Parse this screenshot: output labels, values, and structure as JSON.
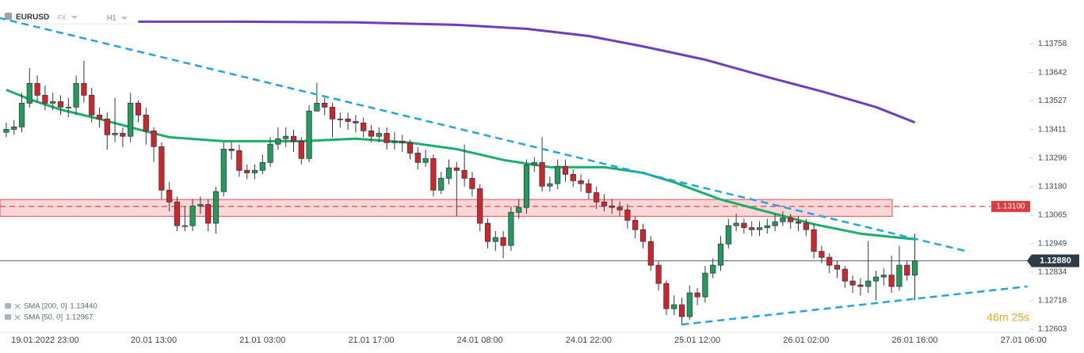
{
  "chart_data": {
    "type": "candlestick",
    "symbol": "EURUSD",
    "market": "FX",
    "interval": "H1",
    "countdown": "46m 25s",
    "categories": [
      null,
      null,
      null,
      null,
      null,
      "19.01.2022 23:00",
      null,
      null,
      null,
      null,
      null,
      null,
      null,
      null,
      null,
      null,
      null,
      null,
      null,
      "20.01 13:00",
      null,
      null,
      null,
      null,
      null,
      null,
      null,
      null,
      null,
      null,
      null,
      null,
      null,
      "21.01 03:00",
      null,
      null,
      null,
      null,
      null,
      null,
      null,
      null,
      null,
      null,
      null,
      null,
      null,
      "21.01 17:00",
      null,
      null,
      null,
      null,
      null,
      null,
      null,
      null,
      null,
      null,
      null,
      null,
      null,
      "24.01 08:00",
      null,
      null,
      null,
      null,
      null,
      null,
      null,
      null,
      null,
      null,
      null,
      null,
      null,
      "24.01 22:00",
      null,
      null,
      null,
      null,
      null,
      null,
      null,
      null,
      null,
      null,
      null,
      null,
      null,
      "25.01 12:00",
      null,
      null,
      null,
      null,
      null,
      null,
      null,
      null,
      null,
      null,
      null,
      null,
      null,
      "26.01 02:00",
      null,
      null,
      null,
      null,
      null,
      null,
      null,
      null,
      null,
      null,
      null,
      null,
      null,
      "26.01 16:00",
      null,
      null,
      null,
      null,
      null,
      null,
      null,
      null,
      null,
      null,
      null,
      null,
      null,
      "27.01 06:00"
    ],
    "series": [
      {
        "name": "EURUSD",
        "up_color": "#1f9e5b",
        "down_color": "#d8222a",
        "open": [
          1.134,
          1.13412,
          1.13422,
          1.13518,
          1.13598,
          1.1355,
          1.13518,
          1.13524,
          1.13502,
          1.13502,
          1.13598,
          1.1355,
          1.1347,
          1.13454,
          1.1339,
          1.13396,
          1.13384,
          1.13518,
          1.1347,
          1.13406,
          1.13342,
          1.13166,
          1.13118,
          1.13022,
          1.13022,
          1.13102,
          1.13108,
          1.13032,
          1.1316,
          1.13332,
          1.13326,
          1.13246,
          1.13236,
          1.13246,
          1.13278,
          1.13352,
          1.13374,
          1.13384,
          1.13364,
          1.13294,
          1.13486,
          1.13518,
          1.13502,
          1.13454,
          1.13454,
          1.13444,
          1.13438,
          1.13406,
          1.13384,
          1.13396,
          1.13358,
          1.13364,
          1.13358,
          1.13316,
          1.13278,
          1.13294,
          1.13166,
          1.13214,
          1.13256,
          1.13246,
          1.13214,
          1.13172,
          1.13032,
          1.12958,
          1.12974,
          1.12942,
          1.13076,
          1.13096,
          1.13268,
          1.13278,
          1.13182,
          1.13192,
          1.13262,
          1.1323,
          1.13204,
          1.13192,
          1.13156,
          1.13118,
          1.13102,
          1.13096,
          1.13086,
          1.13044,
          1.13006,
          1.12958,
          1.12862,
          1.12788,
          1.12686,
          1.12702,
          1.12654,
          1.1275,
          1.12734,
          1.1283,
          1.12862,
          1.12948,
          1.13022,
          1.13032,
          1.13014,
          1.13006,
          1.13014,
          1.13022,
          1.13038,
          1.13054,
          1.13038,
          1.13032,
          1.13006,
          1.12918,
          1.12894,
          1.12862,
          1.12846,
          1.12798,
          1.12782,
          1.12776,
          1.12798,
          1.12814,
          1.12822,
          1.12776,
          1.12862,
          1.12822,
          null,
          null,
          null,
          null,
          null,
          null,
          null,
          null,
          null,
          null,
          null,
          null,
          null,
          null
        ],
        "high": [
          1.1344,
          1.1345,
          1.1356,
          1.1366,
          1.1363,
          1.1359,
          1.1356,
          1.1355,
          1.1354,
          1.1363,
          1.1369,
          1.1358,
          1.135,
          1.1348,
          1.1354,
          1.1342,
          1.1356,
          1.1353,
          1.135,
          1.1342,
          1.1336,
          1.132,
          1.1314,
          1.131,
          1.1313,
          1.1314,
          1.1313,
          1.1318,
          1.1336,
          1.1336,
          1.1335,
          1.1327,
          1.1327,
          1.1331,
          1.1338,
          1.1342,
          1.1342,
          1.1341,
          1.1338,
          1.1351,
          1.136,
          1.1354,
          1.1352,
          1.1348,
          1.1348,
          1.1347,
          1.1346,
          1.1343,
          1.1342,
          1.1342,
          1.134,
          1.1339,
          1.1337,
          1.1334,
          1.1333,
          1.1331,
          1.1324,
          1.1329,
          1.1328,
          1.1335,
          1.1324,
          1.1319,
          1.1305,
          1.13,
          1.13,
          1.131,
          1.1313,
          1.1329,
          1.133,
          1.1338,
          1.1322,
          1.1329,
          1.1329,
          1.1325,
          1.1323,
          1.1321,
          1.1318,
          1.1315,
          1.1313,
          1.1312,
          1.1311,
          1.1306,
          1.1303,
          1.1298,
          1.1288,
          1.128,
          1.1274,
          1.1273,
          1.1278,
          1.1277,
          1.1286,
          1.1289,
          1.1298,
          1.1305,
          1.1307,
          1.1305,
          1.1304,
          1.1304,
          1.1305,
          1.1307,
          1.1308,
          1.1307,
          1.1306,
          1.1305,
          1.1303,
          1.1294,
          1.1291,
          1.1288,
          1.1286,
          1.1282,
          1.1281,
          1.1296,
          1.1284,
          1.1285,
          1.129,
          1.1294,
          1.1288,
          1.1299,
          null,
          null,
          null,
          null,
          null,
          null,
          null,
          null,
          null,
          null,
          null,
          null,
          null,
          null
        ],
        "low": [
          1.1338,
          1.1339,
          1.134,
          1.135,
          1.1352,
          1.1349,
          1.1349,
          1.1347,
          1.1346,
          1.1347,
          1.1352,
          1.1344,
          1.1342,
          1.1333,
          1.1336,
          1.1334,
          1.1336,
          1.1344,
          1.1335,
          1.1328,
          1.1313,
          1.1308,
          1.13,
          1.13,
          1.13,
          1.1307,
          1.13,
          1.1299,
          1.1314,
          1.1329,
          1.1322,
          1.1321,
          1.1321,
          1.1323,
          1.1326,
          1.1333,
          1.1334,
          1.1332,
          1.1327,
          1.1328,
          1.1349,
          1.1347,
          1.1338,
          1.1342,
          1.1341,
          1.134,
          1.1338,
          1.1336,
          1.1336,
          1.1333,
          1.1333,
          1.1332,
          1.1329,
          1.1325,
          1.1326,
          1.1314,
          1.1315,
          1.1319,
          1.1306,
          1.1318,
          1.1314,
          1.13,
          1.1293,
          1.1292,
          1.1289,
          1.1292,
          1.1305,
          1.1307,
          1.1324,
          1.1316,
          1.1316,
          1.1317,
          1.132,
          1.1318,
          1.1316,
          1.1313,
          1.1309,
          1.1308,
          1.1307,
          1.1306,
          1.1301,
          1.1297,
          1.1293,
          1.1284,
          1.1276,
          1.1266,
          1.1266,
          1.1262,
          1.1264,
          1.127,
          1.1271,
          1.1281,
          1.1284,
          1.1293,
          1.13,
          1.1299,
          1.1298,
          1.1298,
          1.1299,
          1.13,
          1.1302,
          1.1301,
          1.13,
          1.1298,
          1.1289,
          1.1287,
          1.1283,
          1.1281,
          1.1277,
          1.1275,
          1.1274,
          1.1275,
          1.1272,
          1.1278,
          1.1275,
          1.1276,
          1.128,
          1.1272,
          null,
          null,
          null,
          null,
          null,
          null,
          null,
          null,
          null,
          null,
          null,
          null,
          null,
          null
        ],
        "close": [
          1.13412,
          1.13422,
          1.13518,
          1.13598,
          1.1355,
          1.13518,
          1.13524,
          1.13502,
          1.13502,
          1.13598,
          1.1355,
          1.1347,
          1.13454,
          1.1339,
          1.13396,
          1.13384,
          1.13518,
          1.1347,
          1.13406,
          1.13342,
          1.13166,
          1.13118,
          1.13022,
          1.13022,
          1.13102,
          1.13108,
          1.13032,
          1.1316,
          1.13332,
          1.13326,
          1.13246,
          1.13236,
          1.13246,
          1.13278,
          1.13352,
          1.13374,
          1.13384,
          1.13364,
          1.13294,
          1.13486,
          1.13518,
          1.13502,
          1.13454,
          1.13454,
          1.13444,
          1.13438,
          1.13406,
          1.13384,
          1.13396,
          1.13358,
          1.13364,
          1.13358,
          1.13316,
          1.13278,
          1.13294,
          1.13166,
          1.13214,
          1.13256,
          1.13246,
          1.13214,
          1.13172,
          1.13032,
          1.12958,
          1.12974,
          1.12942,
          1.13076,
          1.13096,
          1.13268,
          1.13278,
          1.13182,
          1.13192,
          1.13262,
          1.1323,
          1.13204,
          1.13192,
          1.13156,
          1.13118,
          1.13102,
          1.13096,
          1.13086,
          1.13044,
          1.13006,
          1.12958,
          1.12862,
          1.12788,
          1.12686,
          1.12702,
          1.12654,
          1.1275,
          1.12734,
          1.1283,
          1.12862,
          1.12948,
          1.13022,
          1.13032,
          1.13014,
          1.13006,
          1.13014,
          1.13022,
          1.13038,
          1.13054,
          1.13038,
          1.13032,
          1.13006,
          1.12918,
          1.12894,
          1.12862,
          1.12846,
          1.12798,
          1.12782,
          1.12776,
          1.12798,
          1.12814,
          1.12822,
          1.12776,
          1.12862,
          1.12822,
          1.1288,
          null,
          null,
          null,
          null,
          null,
          null,
          null,
          null,
          null,
          null,
          null,
          null,
          null,
          null
        ]
      }
    ],
    "indicators": [
      {
        "name": "SMA [200, 0]",
        "color": "#6b3fc0",
        "current": {
          "value": 1.1344,
          "label": "1.13440"
        },
        "x": [
          17,
          30,
          45,
          58,
          67,
          75,
          82,
          90,
          98,
          105,
          112,
          117
        ],
        "values": [
          1.13848,
          1.13848,
          1.13845,
          1.13835,
          1.13819,
          1.1379,
          1.13748,
          1.13694,
          1.13624,
          1.13566,
          1.13502,
          1.1344
        ]
      },
      {
        "name": "SMA [50, 0]",
        "color": "#17b06b",
        "current": {
          "value": 1.12967,
          "label": "1.12967"
        },
        "x": [
          0,
          3,
          7,
          12,
          17,
          21,
          28,
          38,
          45,
          52,
          58,
          64,
          70,
          77,
          82,
          86,
          92,
          99,
          104,
          110,
          117
        ],
        "values": [
          1.13572,
          1.13534,
          1.13492,
          1.13454,
          1.13412,
          1.1338,
          1.13364,
          1.13364,
          1.13374,
          1.13358,
          1.13332,
          1.13288,
          1.13259,
          1.13259,
          1.13236,
          1.13198,
          1.13128,
          1.1307,
          1.13028,
          1.1299,
          1.12967
        ]
      }
    ],
    "trendlines": [
      {
        "color": "#1ea6e6",
        "x": [
          -1,
          124
        ],
        "values": [
          1.13864,
          1.12916
        ]
      },
      {
        "color": "#1ea6e6",
        "x": [
          87,
          131.5
        ],
        "values": [
          1.12622,
          1.12776
        ]
      }
    ],
    "zone": {
      "from": 1.1306,
      "to": 1.13128,
      "color": "#e8454a"
    },
    "level": {
      "value": 1.131,
      "label": "1.13100",
      "color": "#e03a3e"
    },
    "current_price": {
      "value": 1.1288,
      "label": "1.12880"
    },
    "ylim": [
      1.1259,
      1.1391
    ],
    "yticks": [
      1.13758,
      1.13642,
      1.13527,
      1.13411,
      1.13296,
      {
        "value": 1.1318,
        "label": "1.13180"
      },
      1.13065,
      1.12949,
      1.12834,
      1.12718,
      1.12603
    ]
  }
}
